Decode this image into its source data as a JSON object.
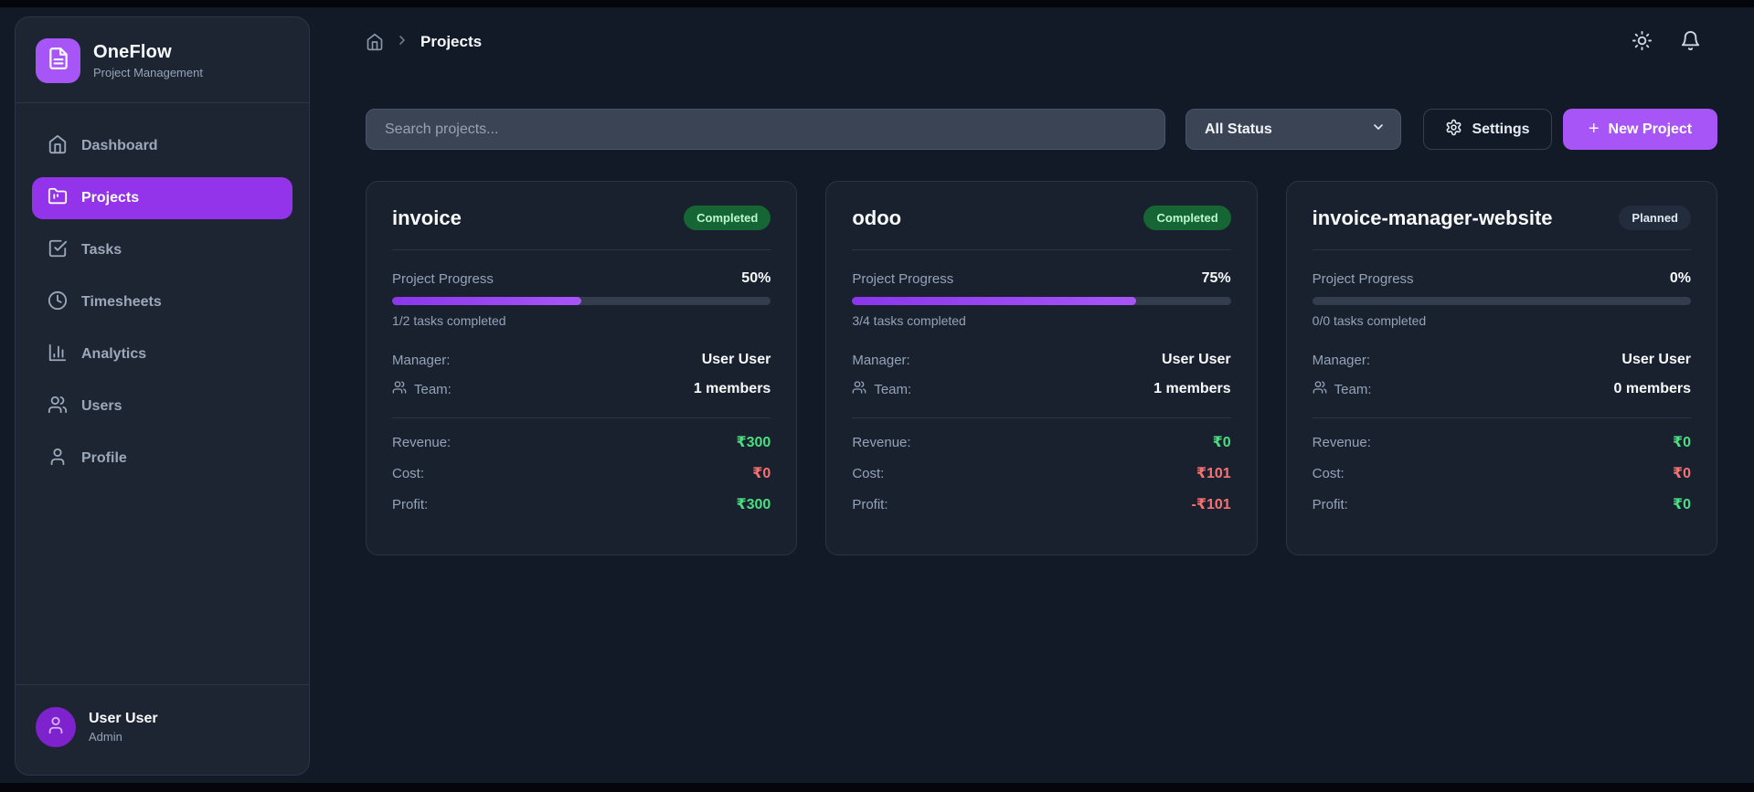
{
  "app": {
    "name": "OneFlow",
    "subtitle": "Project Management"
  },
  "sidebar": {
    "items": [
      {
        "label": "Dashboard"
      },
      {
        "label": "Projects"
      },
      {
        "label": "Tasks"
      },
      {
        "label": "Timesheets"
      },
      {
        "label": "Analytics"
      },
      {
        "label": "Users"
      },
      {
        "label": "Profile"
      }
    ],
    "active_item": "Projects",
    "user": {
      "name": "User User",
      "role": "Admin"
    }
  },
  "header": {
    "breadcrumb_current": "Projects"
  },
  "toolbar": {
    "search_placeholder": "Search projects...",
    "status_filter_value": "All Status",
    "settings_label": "Settings",
    "new_project_plus": "+",
    "new_project_label": "New Project"
  },
  "labels": {
    "progress": "Project Progress",
    "manager": "Manager:",
    "team": "Team:",
    "revenue": "Revenue:",
    "cost": "Cost:",
    "profit": "Profit:"
  },
  "projects": [
    {
      "name": "invoice",
      "status": "Completed",
      "status_class": "completed",
      "progress_pct": "50%",
      "progress_value": 50,
      "tasks": "1/2 tasks completed",
      "manager": "User User",
      "team": "1 members",
      "revenue": "₹300",
      "revenue_class": "pos",
      "cost": "₹0",
      "cost_class": "neg",
      "profit": "₹300",
      "profit_class": "pos"
    },
    {
      "name": "odoo",
      "status": "Completed",
      "status_class": "completed",
      "progress_pct": "75%",
      "progress_value": 75,
      "tasks": "3/4 tasks completed",
      "manager": "User User",
      "team": "1 members",
      "revenue": "₹0",
      "revenue_class": "pos",
      "cost": "₹101",
      "cost_class": "neg",
      "profit": "-₹101",
      "profit_class": "neg"
    },
    {
      "name": "invoice-manager-website",
      "status": "Planned",
      "status_class": "planned",
      "progress_pct": "0%",
      "progress_value": 0,
      "tasks": "0/0 tasks completed",
      "manager": "User User",
      "team": "0 members",
      "revenue": "₹0",
      "revenue_class": "pos",
      "cost": "₹0",
      "cost_class": "neg",
      "profit": "₹0",
      "profit_class": "pos"
    }
  ],
  "colors": {
    "accent_purple": "#a855f7",
    "active_nav_purple": "#9333ea",
    "positive_green": "#4ade80",
    "negative_red": "#f87171",
    "badge_completed_bg": "#166534",
    "badge_completed_text": "#bbf7d0"
  }
}
